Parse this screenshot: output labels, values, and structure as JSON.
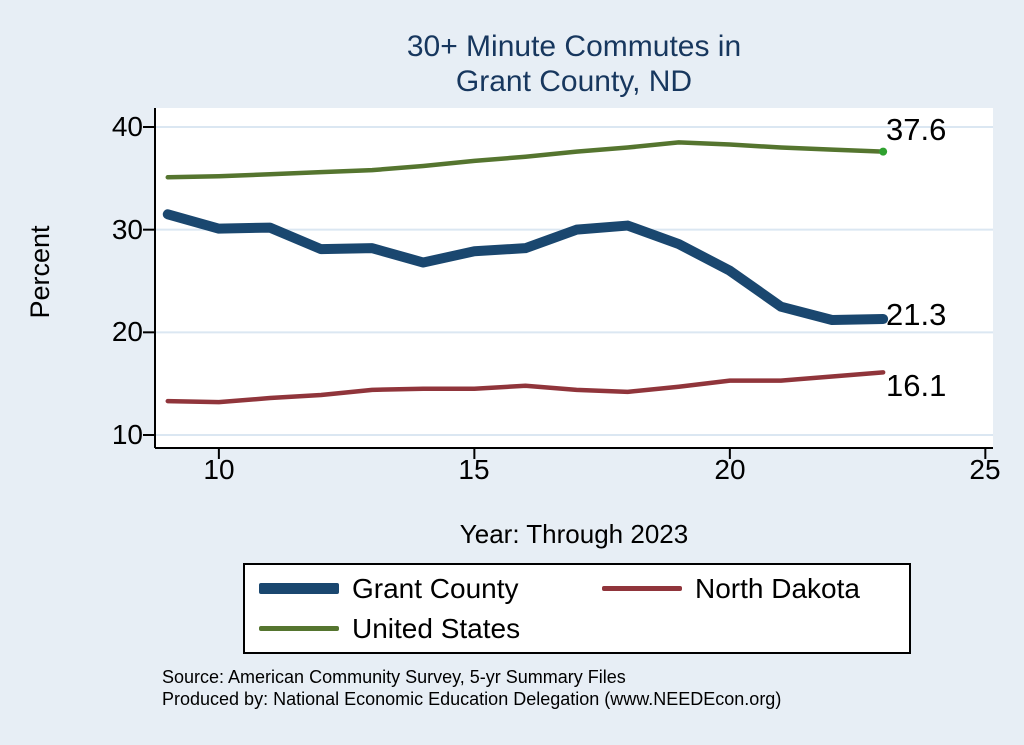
{
  "chart_data": {
    "type": "line",
    "title_lines": [
      "30+ Minute Commutes in",
      "Grant County, ND"
    ],
    "xlabel": "Year: Through 2023",
    "ylabel": "Percent",
    "x": [
      9,
      10,
      11,
      12,
      13,
      14,
      15,
      16,
      17,
      18,
      19,
      20,
      21,
      22,
      23
    ],
    "xticks": [
      10,
      15,
      20,
      25
    ],
    "yticks": [
      40,
      30,
      20,
      10
    ],
    "xlim": [
      8.75,
      25.15
    ],
    "ylim": [
      10,
      40
    ],
    "grid": true,
    "legend_position": "bottom",
    "series": [
      {
        "name": "Grant County",
        "color": "#1a476f",
        "line_width": 10,
        "end_label": "21.3",
        "values": [
          31.5,
          30.1,
          30.2,
          28.1,
          28.2,
          26.8,
          27.9,
          28.2,
          30.0,
          30.4,
          28.6,
          26.0,
          22.5,
          21.2,
          21.3
        ]
      },
      {
        "name": "North Dakota",
        "color": "#90353b",
        "line_width": 4.5,
        "end_label": "16.1",
        "values": [
          13.3,
          13.2,
          13.6,
          13.9,
          14.4,
          14.5,
          14.5,
          14.8,
          14.4,
          14.2,
          14.7,
          15.3,
          15.3,
          15.7,
          16.1
        ]
      },
      {
        "name": "United States",
        "color": "#55752f",
        "line_width": 4.5,
        "end_label": "37.6",
        "end_marker_color": "#2fa12f",
        "values": [
          35.1,
          35.2,
          35.4,
          35.6,
          35.8,
          36.2,
          36.7,
          37.1,
          37.6,
          38.0,
          38.5,
          38.3,
          38.0,
          37.8,
          37.6
        ]
      }
    ]
  },
  "notes": {
    "source": "Source: American Community Survey, 5-yr Summary Files",
    "produced": "Produced by: National Economic Education Delegation (www.NEEDEcon.org)"
  },
  "colors": {
    "background": "#e7eef5",
    "plot_background": "#ffffff",
    "grid": "#dbe7f2",
    "axis": "#000000",
    "title": "#17375e"
  }
}
